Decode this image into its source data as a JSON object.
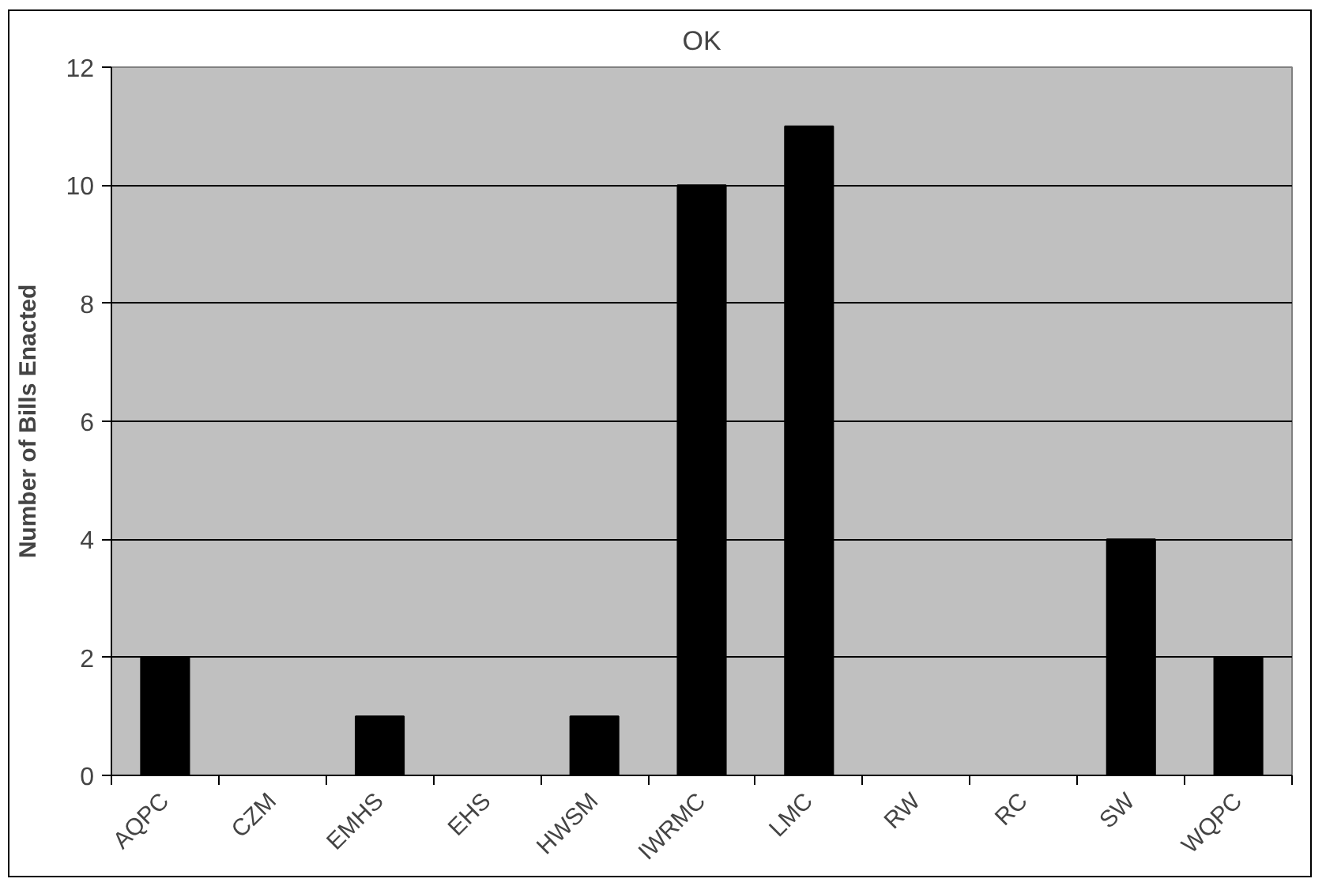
{
  "chart_data": {
    "type": "bar",
    "title": "OK",
    "ylabel": "Number of Bills Enacted",
    "categories": [
      "AQPC",
      "CZM",
      "EMHS",
      "EHS",
      "HWSM",
      "IWRMC",
      "LMC",
      "RW",
      "RC",
      "SW",
      "WQPC"
    ],
    "values": [
      2,
      0,
      1,
      0,
      1,
      10,
      11,
      0,
      0,
      4,
      2
    ],
    "color": "#000000",
    "ylim": [
      0,
      12
    ],
    "yticks": [
      0,
      2,
      4,
      6,
      8,
      10,
      12
    ],
    "grid": "y"
  }
}
